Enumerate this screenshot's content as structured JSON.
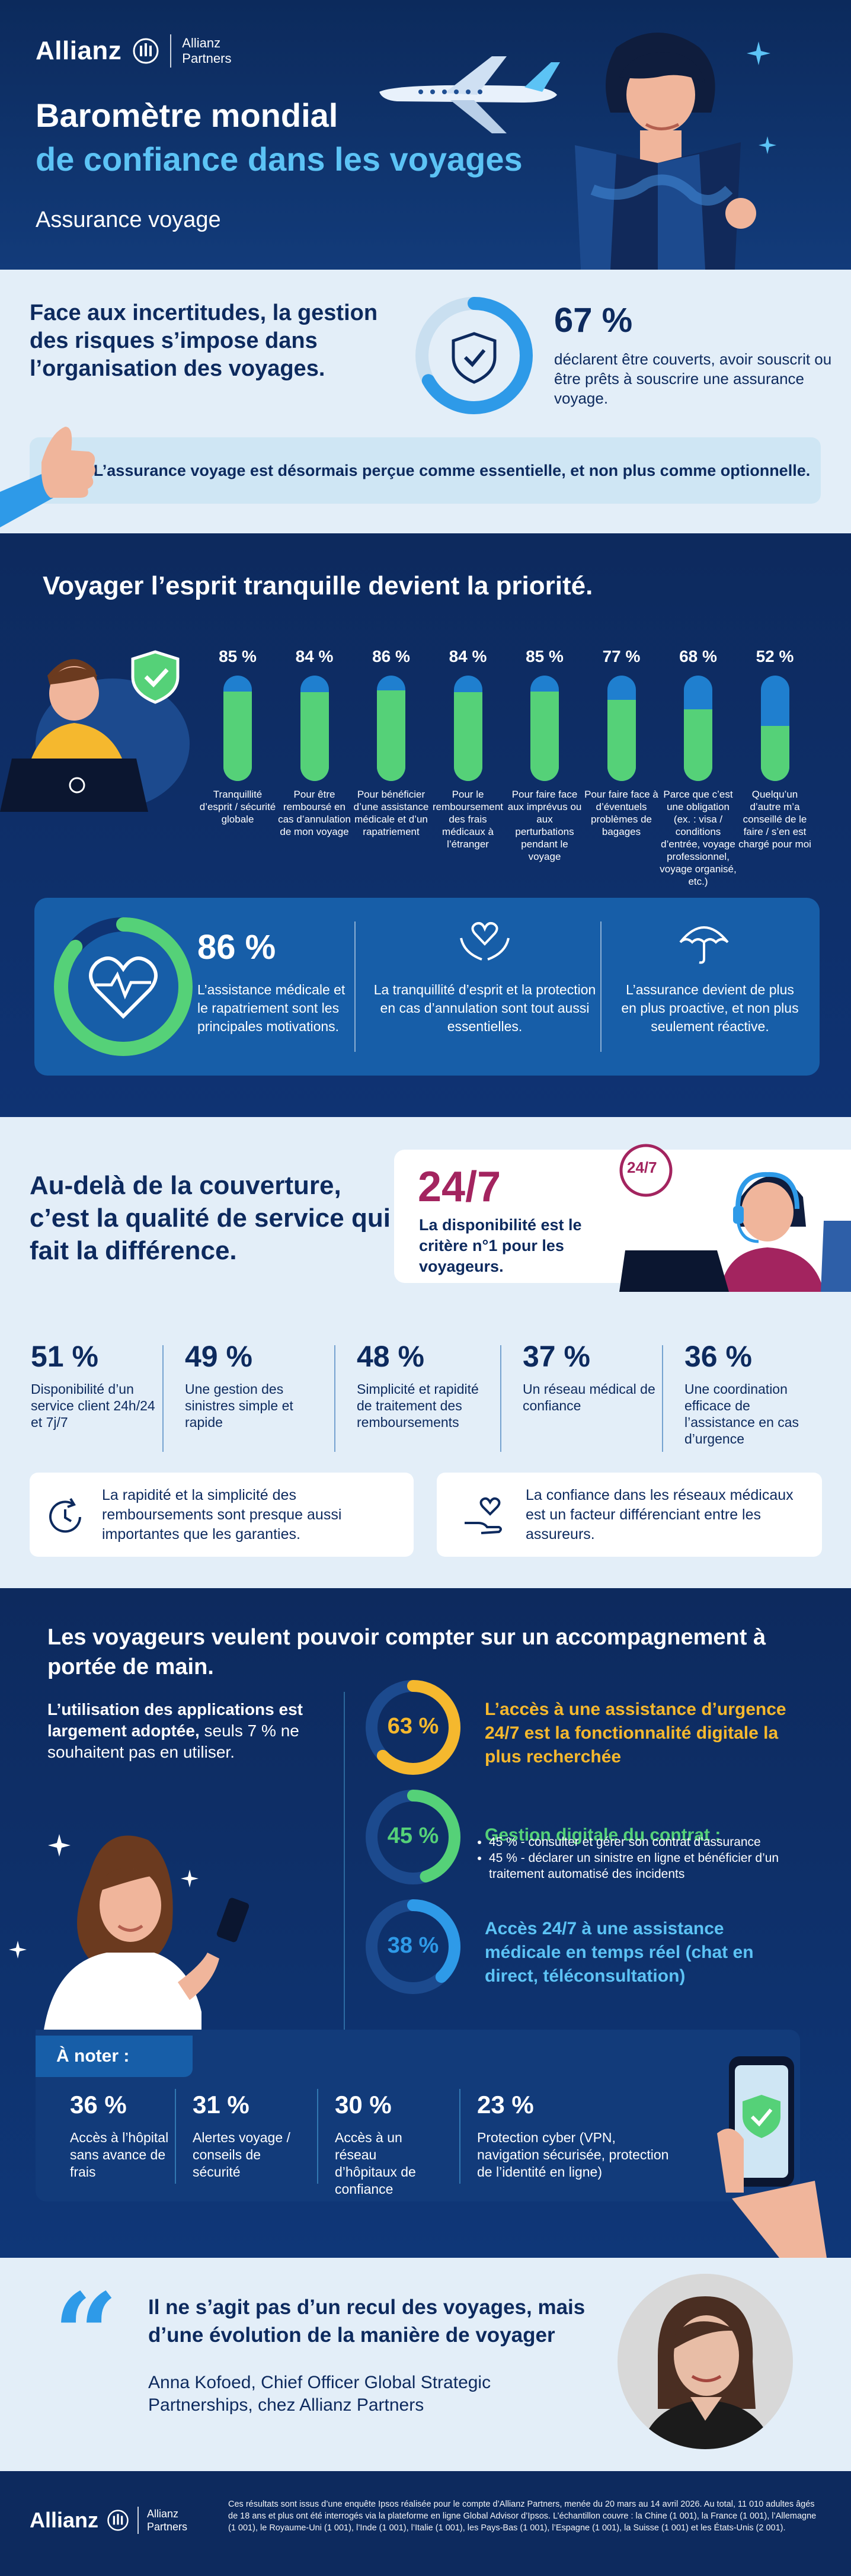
{
  "header": {
    "brand": "Allianz",
    "partners_line1": "Allianz",
    "partners_line2": "Partners",
    "title_line1": "Baromètre mondial",
    "title_line2": "de confiance dans les voyages",
    "subtitle": "Assurance voyage"
  },
  "risk": {
    "headline": "Face aux incertitudes, la gestion des risques s’impose dans l’organisation des voyages.",
    "value": "67 %",
    "ring_fraction": 0.67,
    "description": "déclarent être couverts, avoir souscrit ou être prêts à souscrire une assurance voyage.",
    "banner": "L’assurance voyage est désormais perçue comme essentielle, et non plus comme optionnelle."
  },
  "priority": {
    "headline": "Voyager l’esprit tranquille devient la priorité.",
    "bars": [
      {
        "value": "85 %",
        "fraction": 0.85,
        "label": "Tranquillité d’esprit / sécurité globale"
      },
      {
        "value": "84 %",
        "fraction": 0.84,
        "label": "Pour être remboursé en cas d’annulation de mon voyage"
      },
      {
        "value": "86 %",
        "fraction": 0.86,
        "label": "Pour bénéficier d’une assistance médicale et d’un rapatriement"
      },
      {
        "value": "84 %",
        "fraction": 0.84,
        "label": "Pour le remboursement des frais médicaux à l’étranger"
      },
      {
        "value": "85 %",
        "fraction": 0.85,
        "label": "Pour faire face aux imprévus ou aux perturbations pendant le voyage"
      },
      {
        "value": "77 %",
        "fraction": 0.77,
        "label": "Pour faire face à d’éventuels problèmes de bagages"
      },
      {
        "value": "68 %",
        "fraction": 0.68,
        "label": "Parce que c’est une obligation (ex. : visa / conditions d’entrée, voyage professionnel, voyage organisé, etc.)"
      },
      {
        "value": "52 %",
        "fraction": 0.52,
        "label": "Quelqu’un d’autre m’a conseillé de le faire / s’en est chargé pour moi"
      }
    ],
    "panel": {
      "value": "86 %",
      "ring_fraction": 0.86,
      "text1": "L’assistance médicale et le rapatriement sont les principales motivations.",
      "text2": "La tranquillité d’esprit et la protection en cas d’annulation sont tout aussi essentielles.",
      "text3": "L’assurance devient de plus en plus proactive, et non plus seulement réactive."
    }
  },
  "service": {
    "headline": "Au-delà de la couverture, c’est la qualité de service qui fait la différence.",
    "big": "24/7",
    "big_text": "La disponibilité est le critère n°1 pour les voyageurs.",
    "headset_label": "24/7",
    "stats": [
      {
        "value": "51 %",
        "label": "Disponibilité d’un service client 24h/24 et 7j/7"
      },
      {
        "value": "49 %",
        "label": "Une gestion des sinistres simple et rapide"
      },
      {
        "value": "48 %",
        "label": "Simplicité et rapidité de traitement des remboursements"
      },
      {
        "value": "37 %",
        "label": "Un réseau médical de confiance"
      },
      {
        "value": "36 %",
        "label": "Une coordination efficace de l’assistance en cas d’urgence"
      }
    ],
    "card1": "La rapidité et la simplicité des remboursements sont presque aussi importantes que les garanties.",
    "card2": "La confiance dans les réseaux médicaux est un facteur différenciant entre les assureurs."
  },
  "apps": {
    "headline": "Les voyageurs veulent pouvoir compter sur un accompagnement à portée de main.",
    "intro_bold": "L’utilisation des applications est largement adoptée,",
    "intro_rest": "seuls 7 % ne souhaitent pas en utiliser.",
    "rings": [
      {
        "value": "63 %",
        "fraction": 0.63,
        "color": "#f5b82e",
        "title": "L’accès à une assistance d’urgence 24/7 est la fonctionnalité digitale la plus recherchée"
      },
      {
        "value": "45 %",
        "fraction": 0.45,
        "color": "#55d178",
        "title": "Gestion digitale du contrat :"
      },
      {
        "value": "38 %",
        "fraction": 0.38,
        "color": "#2e9ae8",
        "title": "Accès 24/7 à une assistance médicale en temps réel (chat en direct, téléconsultation)"
      }
    ],
    "bullets": [
      "45 % - consulter et gérer son contrat d’assurance",
      "45 % - déclarer un sinistre en ligne et bénéficier d’un traitement automatisé des incidents"
    ],
    "note_label": "À noter :",
    "notes": [
      {
        "value": "36 %",
        "label": "Accès à l’hôpital sans avance de frais"
      },
      {
        "value": "31 %",
        "label": "Alertes voyage / conseils de sécurité"
      },
      {
        "value": "30 %",
        "label": "Accès à un réseau d’hôpitaux de confiance"
      },
      {
        "value": "23 %",
        "label": "Protection cyber (VPN, navigation sécurisée, protection de l’identité en ligne)"
      }
    ]
  },
  "quote": {
    "mark": "“",
    "text": "Il ne s’agit pas d’un recul des voyages, mais d’une évolution de la manière de voyager",
    "author": "Anna Kofoed, Chief Officer Global Strategic Partnerships, chez Allianz Partners"
  },
  "footer": {
    "brand": "Allianz",
    "partners_line1": "Allianz",
    "partners_line2": "Partners",
    "note": "Ces résultats sont issus d’une enquête Ipsos réalisée pour le compte d’Allianz Partners, menée du 20 mars au 14 avril 2026. Au total, 11 010 adultes âgés de 18 ans et plus ont été interrogés via la plateforme en ligne Global Advisor d’Ipsos. L’échantillon couvre : la Chine (1 001), la France (1 001), l’Allemagne (1 001), le Royaume-Uni (1 001), l’Inde (1 001), l’Italie (1 001), les Pays-Bas (1 001), l’Espagne (1 001), la Suisse (1 001) et les États-Unis (2 001)."
  },
  "colors": {
    "navy": "#0d2a5e",
    "light_blue": "#5cc3f5",
    "green": "#55d178",
    "yellow": "#f5b82e",
    "magenta": "#a3245f",
    "mid_blue": "#2e9ae8"
  }
}
